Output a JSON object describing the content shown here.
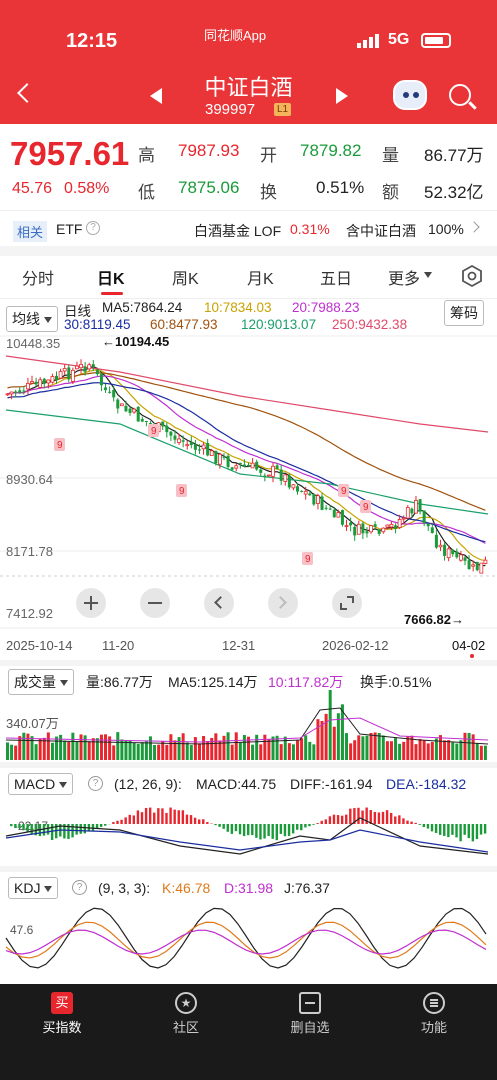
{
  "status": {
    "time": "12:15",
    "app": "同花顺App",
    "network": "5G"
  },
  "header": {
    "title": "中证白酒",
    "code": "399997",
    "level": "L1"
  },
  "quote": {
    "price": "7957.61",
    "change": "45.76",
    "change_pct": "0.58%",
    "high_label": "高",
    "high": "7987.93",
    "open_label": "开",
    "open": "7879.82",
    "vol_label": "量",
    "vol": "86.77万",
    "low_label": "低",
    "low": "7875.06",
    "turn_label": "换",
    "turn": "0.51%",
    "amt_label": "额",
    "amt": "52.32亿"
  },
  "related": {
    "tag": "相关",
    "etf": "ETF",
    "fund": "白酒基金 LOF",
    "fund_pct": "0.31%",
    "contain": "含中证白酒",
    "contain_pct": "100%"
  },
  "tabs": [
    "分时",
    "日K",
    "周K",
    "月K",
    "五日",
    "更多"
  ],
  "kline": {
    "ma_chip": "均线",
    "period": "日线",
    "chip_btn": "筹码",
    "ma5": "MA5:7864.24",
    "ma10": "10:7834.03",
    "ma20": "20:7988.23",
    "ma30": "30:8119.45",
    "ma60": "60:8477.93",
    "ma120": "120:9013.07",
    "ma250": "250:9432.38",
    "y_top": "10448.35",
    "y_mid": "8930.64",
    "y_low": "8171.78",
    "y_bottom": "7412.92",
    "max_label": "←10194.45",
    "min_label": "7666.82→",
    "dates": [
      "2025-10-14",
      "11-20",
      "12-31",
      "2026-02-12",
      "04-02"
    ],
    "signals": [
      "9",
      "9",
      "9",
      "9",
      "9",
      "9"
    ]
  },
  "volume": {
    "chip": "成交量",
    "vol": "量:86.77万",
    "ma5": "MA5:125.14万",
    "ma10": "10:117.82万",
    "turn": "换手:0.51%",
    "y": "340.07万"
  },
  "macd": {
    "chip": "MACD",
    "params": "(12, 26, 9):",
    "macd": "MACD:44.75",
    "diff": "DIFF:-161.94",
    "dea": "DEA:-184.32",
    "y": "-22.17"
  },
  "kdj": {
    "chip": "KDJ",
    "params": "(9, 3, 3):",
    "k": "K:46.78",
    "d": "D:31.98",
    "j": "J:76.37",
    "y": "47.6"
  },
  "nav": [
    {
      "label": "买指数",
      "icon": "buy-icon"
    },
    {
      "label": "社区",
      "icon": "community-icon"
    },
    {
      "label": "删自选",
      "icon": "remove-watchlist-icon"
    },
    {
      "label": "功能",
      "icon": "menu-icon"
    }
  ],
  "colors": {
    "up": "#e8262e",
    "down": "#1a9b3a",
    "header": "#ea3538"
  }
}
